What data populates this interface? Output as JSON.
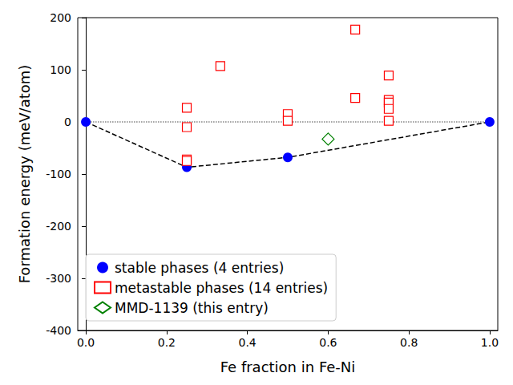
{
  "chart_data": {
    "type": "scatter",
    "x_label": "Fe fraction in Fe-Ni",
    "y_label": "Formation energy (meV/atom)",
    "xlim": [
      -0.02,
      1.02
    ],
    "xticks": [
      {
        "value": 0,
        "label": "0.0"
      },
      {
        "value": 0.2,
        "label": "0.2"
      },
      {
        "value": 0.4,
        "label": "0.4"
      },
      {
        "value": 0.6,
        "label": "0.6"
      },
      {
        "value": 0.8,
        "label": "0.8"
      },
      {
        "value": 1,
        "label": "1.0"
      }
    ],
    "ylim": [
      -400,
      200
    ],
    "yticks": [
      -400,
      -300,
      -200,
      -100,
      0,
      100,
      200
    ],
    "grid": false,
    "legend": "lower left",
    "series": [
      {
        "name": "stable phases (4 entries)",
        "color": "#0000ff",
        "marker": "circle",
        "line_style": "dashed",
        "x": [
          0,
          0.25,
          0.5,
          1
        ],
        "values": [
          0,
          -87,
          -68,
          0
        ]
      },
      {
        "name": "metastable phases (14 entries)",
        "color": "#ff0000",
        "marker": "square-open",
        "x": [
          0.25,
          0.25,
          0.25,
          0.25,
          0.333,
          0.5,
          0.5,
          0.667,
          0.667,
          0.75,
          0.75,
          0.75,
          0.75,
          0.75
        ],
        "values": [
          27,
          -10,
          -72,
          -75,
          107,
          15,
          2,
          177,
          46,
          89,
          42,
          37,
          25,
          2
        ]
      },
      {
        "name": "MMD-1139 (this entry)",
        "color": "#008000",
        "marker": "diamond-open",
        "x": [
          0.6
        ],
        "values": [
          -33
        ]
      }
    ],
    "reference_lines": [
      {
        "y": 0,
        "x": [
          0,
          1
        ],
        "color": "#808080",
        "line_style": "dotted"
      }
    ]
  }
}
